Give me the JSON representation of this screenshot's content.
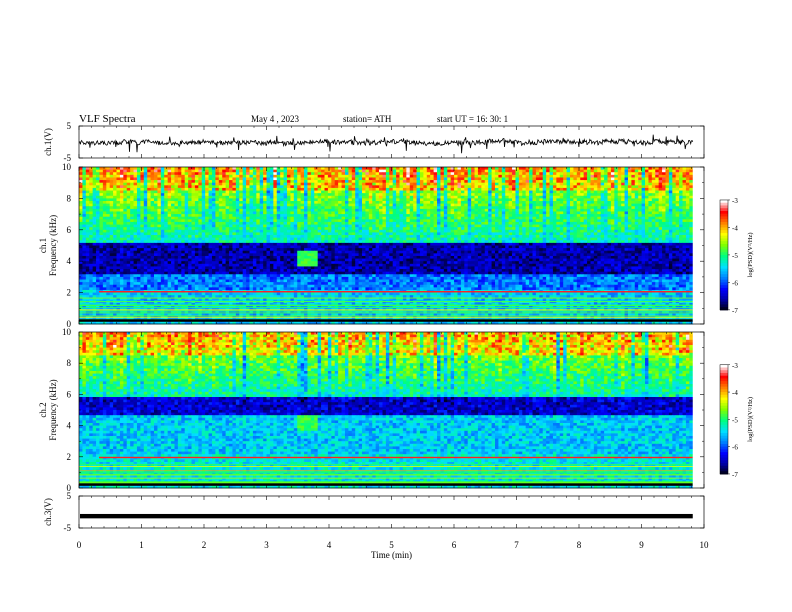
{
  "header": {
    "title": "VLF  Spectra",
    "date": "May 4  , 2023",
    "station": "station= ATH",
    "start": "start  UT  =    16: 30: 1"
  },
  "chart_data": [
    {
      "type": "line",
      "panel": "ch1-waveform",
      "ylabel": "ch.1(V)",
      "ylim": [
        -5,
        5
      ],
      "yticks": [
        "5",
        "-5"
      ],
      "xlim": [
        0,
        10
      ],
      "line_color": "#000000"
    },
    {
      "type": "heatmap",
      "panel": "ch1-spectrogram",
      "ylabel_channel": "ch.1",
      "ylabel": "Frequency  (kHz)",
      "ylim": [
        0,
        10
      ],
      "yticks": [
        "0",
        "2",
        "4",
        "6",
        "8",
        "10"
      ],
      "xlim": [
        0,
        10
      ],
      "colorbar": {
        "label": "log(PSD)(V²/Hz)",
        "range": [
          -7,
          -3
        ],
        "ticks": [
          "-3",
          "-4",
          "-5",
          "-6",
          "-7"
        ]
      },
      "features": {
        "emission_patch": {
          "t_min": [
            3.5,
            3.8
          ],
          "f_khz": [
            3.6,
            4.6
          ]
        },
        "dark_band_khz": [
          3.2,
          5.2
        ],
        "red_line_khz": 2.1
      }
    },
    {
      "type": "heatmap",
      "panel": "ch2-spectrogram",
      "ylabel_channel": "ch.2",
      "ylabel": "Frequency  (kHz)",
      "ylim": [
        0,
        10
      ],
      "yticks": [
        "0",
        "2",
        "4",
        "6",
        "8",
        "10"
      ],
      "xlim": [
        0,
        10
      ],
      "colorbar": {
        "label": "log(PSD)(V²/Hz)",
        "range": [
          -7,
          -3
        ],
        "ticks": [
          "-3",
          "-4",
          "-5",
          "-6",
          "-7"
        ]
      },
      "features": {
        "emission_patch": {
          "t_min": [
            3.5,
            3.8
          ],
          "f_khz": [
            3.6,
            4.6
          ]
        },
        "dark_band_khz": [
          4.6,
          5.8
        ],
        "red_line_khz": 2.0
      }
    },
    {
      "type": "line",
      "panel": "ch3-waveform",
      "ylabel": "ch.3(V)",
      "ylim": [
        -5,
        5
      ],
      "yticks": [
        "5",
        "-5"
      ],
      "xlim": [
        0,
        10
      ],
      "level_v": -1.3
    }
  ],
  "xaxis": {
    "label": "Time  (min)",
    "ticks": [
      "0",
      "1",
      "2",
      "3",
      "4",
      "5",
      "6",
      "7",
      "8",
      "9",
      "10"
    ]
  },
  "colorscale": [
    "#000000",
    "#0000a0",
    "#0000ff",
    "#0080ff",
    "#00e0ff",
    "#00ff80",
    "#80ff00",
    "#ffff00",
    "#ff8000",
    "#ff0000",
    "#ffffff"
  ]
}
